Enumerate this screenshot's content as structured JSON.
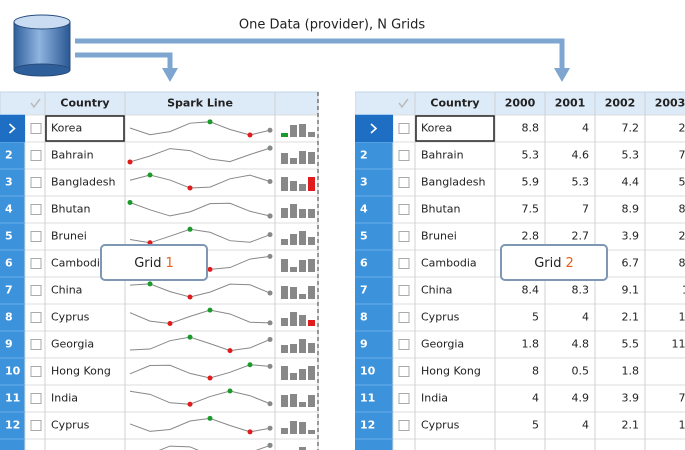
{
  "header": {
    "title": "One Data (provider), N Grids"
  },
  "grid1": {
    "label": "Grid",
    "number": "1",
    "columns": [
      "Country",
      "Spark Line"
    ],
    "rows": [
      {
        "country": "Korea"
      },
      {
        "number": "2",
        "country": "Bahrain"
      },
      {
        "number": "3",
        "country": "Bangladesh"
      },
      {
        "number": "4",
        "country": "Bhutan"
      },
      {
        "number": "5",
        "country": "Brunei"
      },
      {
        "number": "6",
        "country": "Cambodia"
      },
      {
        "number": "7",
        "country": "China"
      },
      {
        "number": "8",
        "country": "Cyprus"
      },
      {
        "number": "9",
        "country": "Georgia"
      },
      {
        "number": "10",
        "country": "Hong Kong"
      },
      {
        "number": "11",
        "country": "India"
      },
      {
        "number": "12",
        "country": "Cyprus"
      }
    ]
  },
  "grid2": {
    "label": "Grid",
    "number": "2",
    "columns": [
      "Country",
      "2000",
      "2001",
      "2002",
      "2003"
    ],
    "rows": [
      {
        "country": "Korea",
        "values": [
          "8.8",
          "4",
          "7.2",
          "2."
        ]
      },
      {
        "number": "2",
        "country": "Bahrain",
        "values": [
          "5.3",
          "4.6",
          "5.3",
          "7."
        ]
      },
      {
        "number": "3",
        "country": "Bangladesh",
        "values": [
          "5.9",
          "5.3",
          "4.4",
          "5."
        ]
      },
      {
        "number": "4",
        "country": "Bhutan",
        "values": [
          "7.5",
          "7",
          "8.9",
          "8."
        ]
      },
      {
        "number": "5",
        "country": "Brunei",
        "values": [
          "2.8",
          "2.7",
          "3.9",
          "2."
        ]
      },
      {
        "number": "6",
        "country": "Cambodia",
        "values": [
          null,
          null,
          "6.7",
          "8."
        ]
      },
      {
        "number": "7",
        "country": "China",
        "values": [
          "8.4",
          "8.3",
          "9.1",
          "1"
        ]
      },
      {
        "number": "8",
        "country": "Cyprus",
        "values": [
          "5",
          "4",
          "2.1",
          "1."
        ]
      },
      {
        "number": "9",
        "country": "Georgia",
        "values": [
          "1.8",
          "4.8",
          "5.5",
          "11."
        ]
      },
      {
        "number": "10",
        "country": "Hong Kong",
        "values": [
          "8",
          "0.5",
          "1.8",
          null
        ]
      },
      {
        "number": "11",
        "country": "India",
        "values": [
          "4",
          "4.9",
          "3.9",
          "7."
        ]
      },
      {
        "number": "12",
        "country": "Cyprus",
        "values": [
          "5",
          "4",
          "2.1",
          "1."
        ]
      }
    ]
  }
}
